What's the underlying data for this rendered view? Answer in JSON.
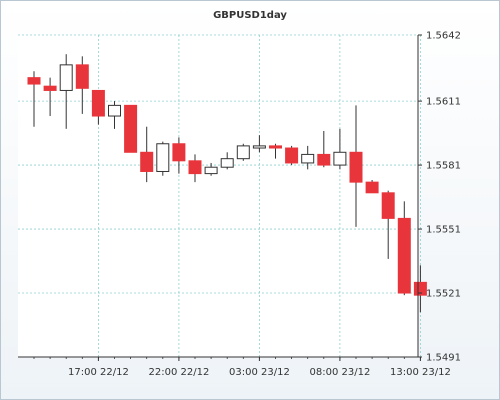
{
  "chart_data": {
    "type": "candlestick",
    "title": "GBPUSD1day",
    "xlabel": "",
    "ylabel": "",
    "ylim": [
      1.5491,
      1.5642
    ],
    "y_ticks": [
      "1.5491",
      "1.5521",
      "1.5551",
      "1.5581",
      "1.5611",
      "1.5642"
    ],
    "x_ticks": [
      "17:00 22/12",
      "22:00 22/12",
      "03:00 23/12",
      "08:00 23/12",
      "13:00 23/12"
    ],
    "x_tick_bar_index": [
      4,
      9,
      14,
      19,
      24
    ],
    "grid": true,
    "colors": {
      "up_fill": "#ffffff",
      "down_fill": "#e8353b",
      "wick": "#333333",
      "grid": "#8fd0d0",
      "axis": "#333333",
      "text": "#333333"
    },
    "candles": [
      {
        "open": 1.5622,
        "high": 1.5625,
        "low": 1.5599,
        "close": 1.5619
      },
      {
        "open": 1.5618,
        "high": 1.5622,
        "low": 1.5604,
        "close": 1.5616
      },
      {
        "open": 1.5616,
        "high": 1.5633,
        "low": 1.5598,
        "close": 1.5628
      },
      {
        "open": 1.5628,
        "high": 1.5632,
        "low": 1.5605,
        "close": 1.5617
      },
      {
        "open": 1.5616,
        "high": 1.5616,
        "low": 1.56,
        "close": 1.5604
      },
      {
        "open": 1.5604,
        "high": 1.5611,
        "low": 1.5598,
        "close": 1.5609
      },
      {
        "open": 1.5609,
        "high": 1.5609,
        "low": 1.5587,
        "close": 1.5587
      },
      {
        "open": 1.5587,
        "high": 1.5599,
        "low": 1.5573,
        "close": 1.5578
      },
      {
        "open": 1.5578,
        "high": 1.5592,
        "low": 1.5576,
        "close": 1.5591
      },
      {
        "open": 1.5591,
        "high": 1.5594,
        "low": 1.5577,
        "close": 1.5583
      },
      {
        "open": 1.5583,
        "high": 1.5586,
        "low": 1.5573,
        "close": 1.5577
      },
      {
        "open": 1.5577,
        "high": 1.5582,
        "low": 1.5576,
        "close": 1.558
      },
      {
        "open": 1.558,
        "high": 1.5587,
        "low": 1.5579,
        "close": 1.5584
      },
      {
        "open": 1.5584,
        "high": 1.5591,
        "low": 1.5583,
        "close": 1.559
      },
      {
        "open": 1.5589,
        "high": 1.5595,
        "low": 1.5587,
        "close": 1.559
      },
      {
        "open": 1.559,
        "high": 1.5591,
        "low": 1.5584,
        "close": 1.5589
      },
      {
        "open": 1.5589,
        "high": 1.559,
        "low": 1.5581,
        "close": 1.5582
      },
      {
        "open": 1.5582,
        "high": 1.559,
        "low": 1.5579,
        "close": 1.5586
      },
      {
        "open": 1.5586,
        "high": 1.5597,
        "low": 1.558,
        "close": 1.5581
      },
      {
        "open": 1.5581,
        "high": 1.5598,
        "low": 1.5579,
        "close": 1.5587
      },
      {
        "open": 1.5587,
        "high": 1.5609,
        "low": 1.5552,
        "close": 1.5573
      },
      {
        "open": 1.5573,
        "high": 1.5574,
        "low": 1.5568,
        "close": 1.5568
      },
      {
        "open": 1.5568,
        "high": 1.5569,
        "low": 1.5537,
        "close": 1.5556
      },
      {
        "open": 1.5556,
        "high": 1.5564,
        "low": 1.552,
        "close": 1.5521
      },
      {
        "open": 1.5526,
        "high": 1.5534,
        "low": 1.5512,
        "close": 1.552
      }
    ]
  }
}
